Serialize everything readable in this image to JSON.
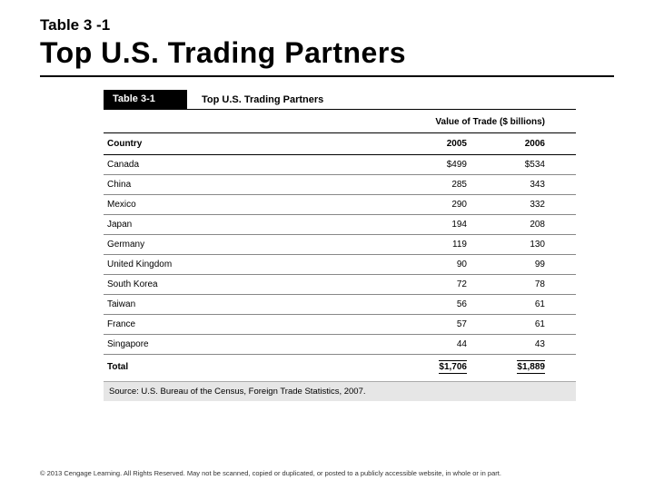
{
  "header": {
    "table_label": "Table  3 -1",
    "title": "Top U.S. Trading Partners"
  },
  "figure": {
    "black_label": "Table 3-1",
    "caption": "Top U.S. Trading Partners",
    "value_header": "Value of Trade ($ billions)",
    "col_country": "Country",
    "col_year1": "2005",
    "col_year2": "2006",
    "rows": [
      {
        "country": "Canada",
        "y1": "$499",
        "y2": "$534"
      },
      {
        "country": "China",
        "y1": "285",
        "y2": "343"
      },
      {
        "country": "Mexico",
        "y1": "290",
        "y2": "332"
      },
      {
        "country": "Japan",
        "y1": "194",
        "y2": "208"
      },
      {
        "country": "Germany",
        "y1": "119",
        "y2": "130"
      },
      {
        "country": "United Kingdom",
        "y1": "90",
        "y2": "99"
      },
      {
        "country": "South Korea",
        "y1": "72",
        "y2": "78"
      },
      {
        "country": "Taiwan",
        "y1": "56",
        "y2": "61"
      },
      {
        "country": "France",
        "y1": "57",
        "y2": "61"
      },
      {
        "country": "Singapore",
        "y1": "44",
        "y2": "43"
      }
    ],
    "total_label": "Total",
    "total_y1": "$1,706",
    "total_y2": "$1,889",
    "source": "Source: U.S. Bureau of the Census, Foreign Trade Statistics, 2007."
  },
  "copyright": "© 2013 Cengage Learning. All Rights Reserved. May not be scanned, copied or duplicated, or posted to a publicly accessible website, in whole or in part."
}
